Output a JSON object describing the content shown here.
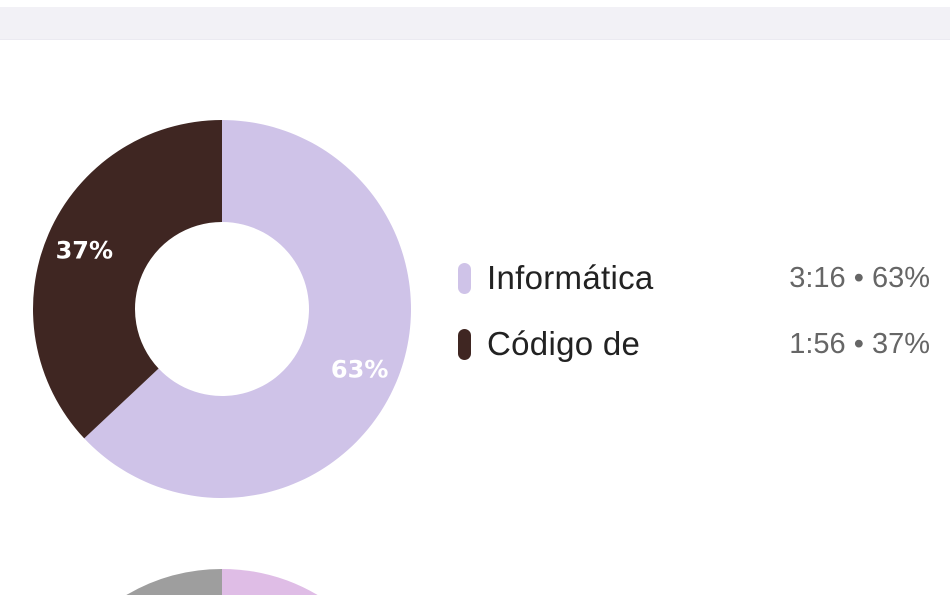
{
  "chart_data": [
    {
      "type": "pie",
      "donut": true,
      "slices": [
        {
          "label": "Informática",
          "value": 63,
          "display_label": "63%",
          "color": "#cfc3e8"
        },
        {
          "label": "Código de",
          "value": 37,
          "display_label": "37%",
          "color": "#3f2622"
        }
      ],
      "legend": "right"
    },
    {
      "type": "pie",
      "donut": true,
      "partially_visible": true,
      "colors": [
        "#dfbde6",
        "#9e9e9e"
      ]
    }
  ],
  "legend": [
    {
      "label": "Informática",
      "time": "3:16",
      "percent": "63%",
      "color": "#cfc3e8"
    },
    {
      "label": "Código de",
      "time": "1:56",
      "percent": "37%",
      "color": "#3f2622"
    }
  ],
  "separator": "•"
}
